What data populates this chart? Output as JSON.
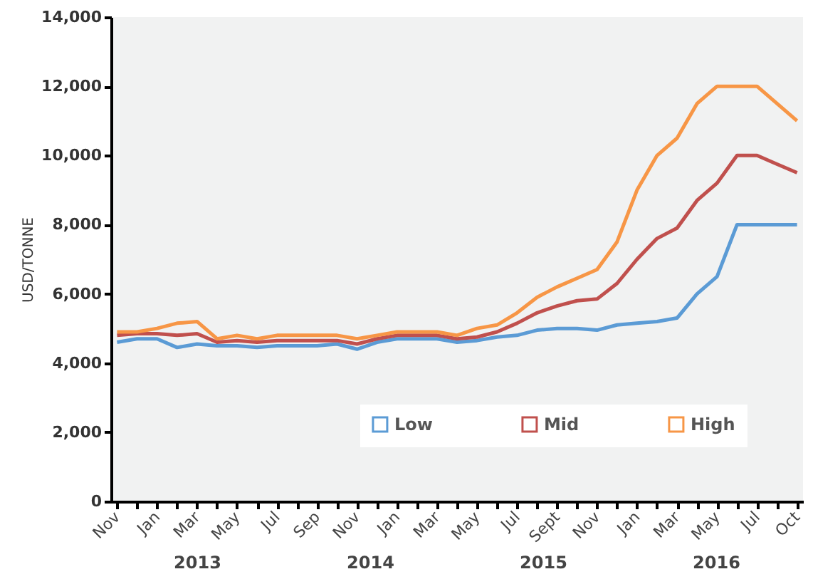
{
  "chart_data": {
    "type": "line",
    "ylabel": "USD/TONNE",
    "categories": [
      "Nov",
      null,
      "Jan",
      null,
      "Mar",
      null,
      "May",
      null,
      "Jul",
      null,
      "Sep",
      null,
      "Nov",
      null,
      "Jan",
      null,
      "Mar",
      null,
      "May",
      null,
      "Jul",
      null,
      "Sept",
      null,
      "Nov",
      null,
      "Jan",
      null,
      "Mar",
      null,
      "May",
      null,
      "Jul",
      null,
      "Oct"
    ],
    "series": [
      {
        "name": "Low",
        "color": "#5b9bd5",
        "values": [
          4600,
          4700,
          4700,
          4450,
          4550,
          4500,
          4500,
          4450,
          4500,
          4500,
          4500,
          4550,
          4400,
          4600,
          4700,
          4700,
          4700,
          4600,
          4650,
          4750,
          4800,
          4950,
          5000,
          5000,
          4950,
          5100,
          5150,
          5200,
          5300,
          6000,
          6500,
          8000,
          8000,
          8000,
          8000
        ]
      },
      {
        "name": "Mid",
        "color": "#c0504d",
        "values": [
          4800,
          4850,
          4850,
          4800,
          4850,
          4600,
          4650,
          4600,
          4650,
          4650,
          4650,
          4650,
          4550,
          4700,
          4800,
          4800,
          4800,
          4700,
          4750,
          4900,
          5150,
          5450,
          5650,
          5800,
          5850,
          6300,
          7000,
          7600,
          7900,
          8700,
          9200,
          10000,
          10000,
          9750,
          9500
        ]
      },
      {
        "name": "High",
        "color": "#f79646",
        "values": [
          4900,
          4900,
          5000,
          5150,
          5200,
          4700,
          4800,
          4700,
          4800,
          4800,
          4800,
          4800,
          4700,
          4800,
          4900,
          4900,
          4900,
          4800,
          5000,
          5100,
          5450,
          5900,
          6200,
          6450,
          6700,
          7500,
          9000,
          10000,
          10500,
          11500,
          12000,
          12000,
          12000,
          11500,
          11000
        ]
      }
    ],
    "ylim": [
      0,
      14000
    ],
    "yticks": [
      0,
      {
        "value": 2000,
        "label": "2,000"
      },
      {
        "value": 4000,
        "label": "4,000"
      },
      {
        "value": 6000,
        "label": "6,000"
      },
      {
        "value": 8000,
        "label": "8,000"
      },
      {
        "value": 10000,
        "label": "10,000"
      },
      {
        "value": 12000,
        "label": "12,000"
      },
      {
        "value": 14000,
        "label": "14,000"
      }
    ],
    "grid": false,
    "legend": "bottom",
    "marker": "none",
    "line_style": "solid",
    "annotations": [
      "2013",
      "2014",
      "2015",
      "2016"
    ]
  }
}
